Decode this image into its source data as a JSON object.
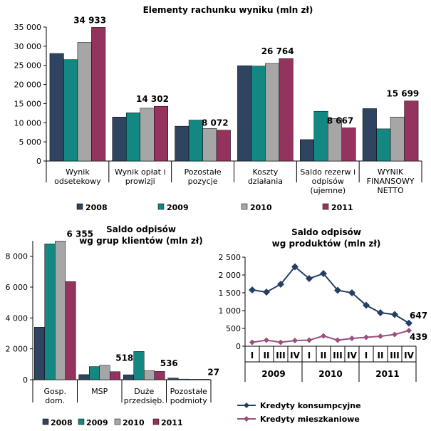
{
  "chart_data": [
    {
      "id": "top",
      "type": "bar",
      "title": "Elementy  rachunku  wyniku  (mln  zł)",
      "categories": [
        [
          "Wynik",
          "odsetekowy"
        ],
        [
          "Wynik opłat i",
          "prowizji"
        ],
        [
          "Pozostałe",
          "pozycje"
        ],
        [
          "Koszty",
          "działania"
        ],
        [
          "Saldo rezerw i",
          "odpisów",
          "(ujemne)"
        ],
        [
          "WYNIK",
          "FINANSOWY",
          "NETTO"
        ]
      ],
      "series": [
        {
          "name": "2008",
          "color": "#2e4460",
          "values": [
            28100,
            11500,
            9100,
            24900,
            5600,
            13700
          ]
        },
        {
          "name": "2009",
          "color": "#138883",
          "values": [
            26500,
            12600,
            10700,
            24800,
            13000,
            8400
          ]
        },
        {
          "name": "2010",
          "color": "#a6a6a6",
          "values": [
            31000,
            13800,
            8500,
            25500,
            11100,
            11500
          ]
        },
        {
          "name": "2011",
          "color": "#95335f",
          "values": [
            34933,
            14302,
            8072,
            26764,
            8667,
            15699
          ]
        }
      ],
      "data_labels": [
        "34 933",
        "14 302",
        "8 072",
        "26 764",
        "8 667",
        "15 699"
      ],
      "ylim": [
        0,
        35000
      ],
      "yticks": [
        "0",
        "5 000",
        "10 000",
        "15 000",
        "20 000",
        "25 000",
        "30 000",
        "35 000"
      ],
      "legend": [
        "2008",
        "2009",
        "2010",
        "2011"
      ]
    },
    {
      "id": "bottom-left",
      "type": "bar",
      "title": [
        "Saldo  odpisów",
        "wg grup  klientów  (mln  zł)"
      ],
      "categories": [
        [
          "Gosp.",
          "dom."
        ],
        [
          "MSP"
        ],
        [
          "Duże",
          "przedsięb."
        ],
        [
          "Pozostałe",
          "podmioty"
        ]
      ],
      "series": [
        {
          "name": "2008",
          "color": "#2e4460",
          "values": [
            3400,
            330,
            320,
            110
          ]
        },
        {
          "name": "2009",
          "color": "#138883",
          "values": [
            8800,
            850,
            1830,
            40
          ]
        },
        {
          "name": "2010",
          "color": "#a6a6a6",
          "values": [
            8980,
            940,
            590,
            30
          ]
        },
        {
          "name": "2011",
          "color": "#95335f",
          "values": [
            6355,
            518,
            536,
            27
          ]
        }
      ],
      "data_labels": [
        "6 355",
        "518",
        "536",
        "27"
      ],
      "ylim": [
        0,
        9000
      ],
      "yticks": [
        "0",
        "2 000",
        "4 000",
        "6 000",
        "8 000"
      ],
      "legend": [
        "2008",
        "2009",
        "2010",
        "2011"
      ]
    },
    {
      "id": "bottom-right",
      "type": "line",
      "title": [
        "Saldo  odpisów",
        "wg  produktów  (mln  zł)"
      ],
      "quarters": [
        "I",
        "II",
        "III",
        "IV",
        "I",
        "II",
        "III",
        "IV",
        "I",
        "II",
        "III",
        "IV"
      ],
      "years": [
        "2009",
        "2010",
        "2011"
      ],
      "series": [
        {
          "name": "Kredyty  konsumpcyjne",
          "color": "#253f63",
          "values": [
            1580,
            1520,
            1740,
            2230,
            1900,
            2040,
            1570,
            1500,
            1150,
            940,
            890,
            647
          ]
        },
        {
          "name": "Kredyty  mieszkaniowe",
          "color": "#9a4f7e",
          "values": [
            110,
            170,
            110,
            160,
            170,
            290,
            170,
            220,
            250,
            280,
            330,
            439
          ]
        }
      ],
      "end_labels": [
        "647",
        "439"
      ],
      "ylim": [
        0,
        2500
      ],
      "yticks": [
        "0",
        "500",
        "1 000",
        "1 500",
        "2 000",
        "2 500"
      ]
    }
  ]
}
